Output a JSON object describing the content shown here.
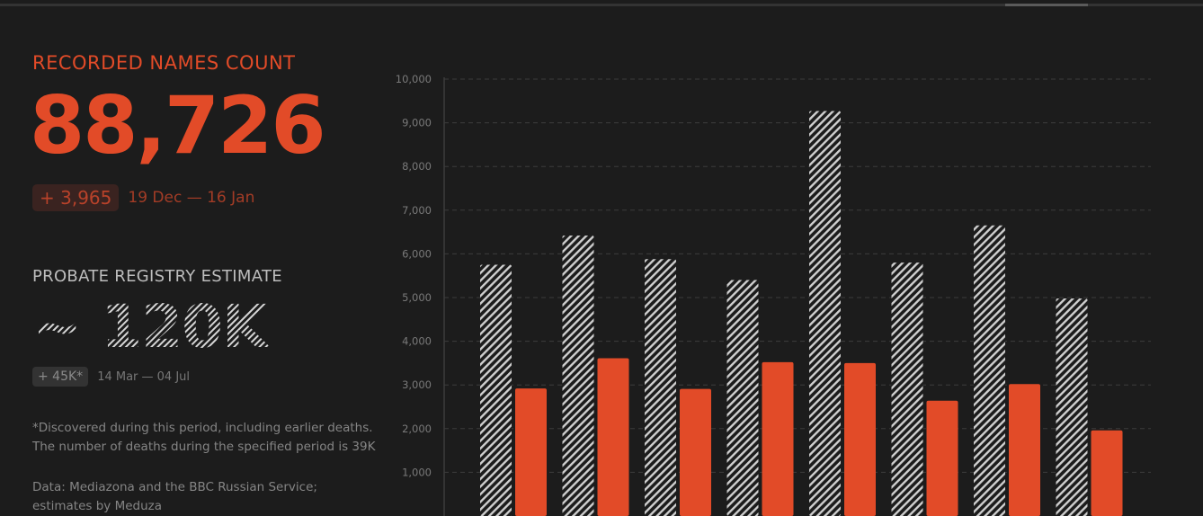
{
  "left_panel": {
    "recorded_label": "RECORDED NAMES COUNT",
    "recorded_count": "88,726",
    "recorded_delta": "+ 3,965",
    "recorded_period": "19 Dec — 16 Jan",
    "estimate_label": "PROBATE REGISTRY ESTIMATE",
    "estimate_value": "~ 120K",
    "estimate_delta": "+ 45K*",
    "estimate_period": "14 Mar — 04 Jul",
    "footnote_line1": "*Discovered during this period, including earlier deaths.",
    "footnote_line2": "The number of deaths during the specified period is 39K",
    "source_line1": "Data: Mediazona and the BBC Russian Service;",
    "source_line2": "estimates by Meduza"
  },
  "colors": {
    "accent": "#e24b28",
    "hatch": "#cfcfcf",
    "background": "#1c1c1c"
  },
  "chart_data": {
    "type": "bar",
    "ylim": [
      0,
      10000
    ],
    "yticks": [
      1000,
      2000,
      3000,
      4000,
      5000,
      6000,
      7000,
      8000,
      9000,
      10000
    ],
    "ytick_labels": [
      "1,000",
      "2,000",
      "3,000",
      "4,000",
      "5,000",
      "6,000",
      "7,000",
      "8,000",
      "9,000",
      "10,000"
    ],
    "grid": true,
    "series": [
      {
        "style": "hatched",
        "color": "#cfcfcf",
        "values": [
          5750,
          6420,
          5880,
          5400,
          9270,
          5800,
          6650,
          4980
        ]
      },
      {
        "style": "solid",
        "color": "#e24b28",
        "values": [
          2920,
          3610,
          2910,
          3520,
          3500,
          2640,
          3020,
          1960
        ]
      }
    ]
  }
}
